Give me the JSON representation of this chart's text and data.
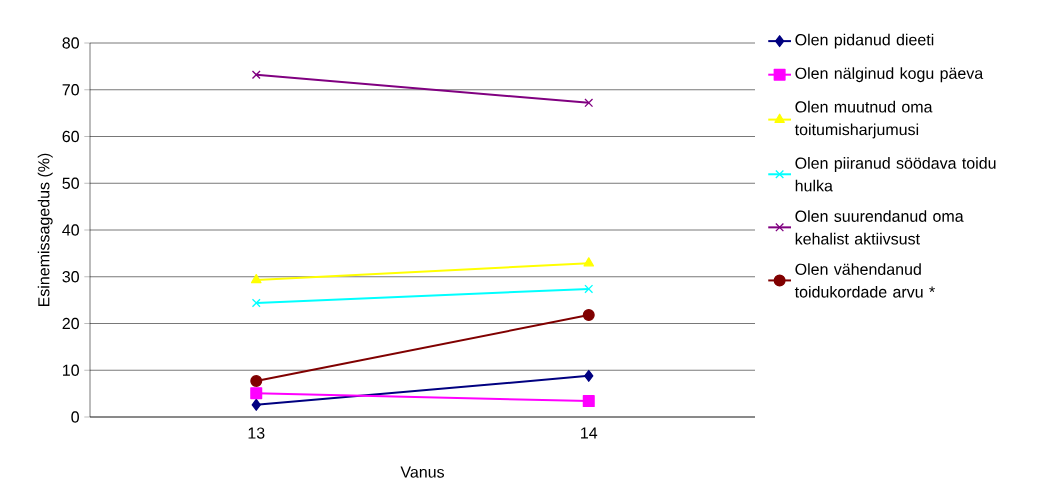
{
  "chart_data": {
    "type": "line",
    "xlabel": "Vanus",
    "ylabel": "Esinemissagedus (%)",
    "categories": [
      "13",
      "14"
    ],
    "series": [
      {
        "name": "Olen pidanud dieeti",
        "color": "#000080",
        "marker": "diamond",
        "values": [
          2.6,
          8.8
        ]
      },
      {
        "name": "Olen nälginud kogu päeva",
        "color": "#ff00ff",
        "marker": "square",
        "values": [
          5.1,
          3.4
        ]
      },
      {
        "name": "Olen muutnud oma toitumisharjumusi",
        "color": "#ffff00",
        "marker": "triangle",
        "values": [
          29.3,
          32.9
        ]
      },
      {
        "name": "Olen piiranud söödava toidu hulka",
        "color": "#00ffff",
        "marker": "cross",
        "values": [
          24.4,
          27.4
        ]
      },
      {
        "name": "Olen suurendanud oma kehalist aktiivsust",
        "color": "#800080",
        "marker": "cross",
        "values": [
          73.2,
          67.2
        ]
      },
      {
        "name": "Olen vähendanud toidukordade arvu *",
        "color": "#800000",
        "marker": "circle",
        "values": [
          7.7,
          21.8
        ]
      }
    ],
    "ylim": [
      0,
      80
    ],
    "yticks": [
      0,
      10,
      20,
      30,
      40,
      50,
      60,
      70,
      80
    ],
    "grid": "y",
    "legend": "right",
    "line_style": "solid"
  }
}
